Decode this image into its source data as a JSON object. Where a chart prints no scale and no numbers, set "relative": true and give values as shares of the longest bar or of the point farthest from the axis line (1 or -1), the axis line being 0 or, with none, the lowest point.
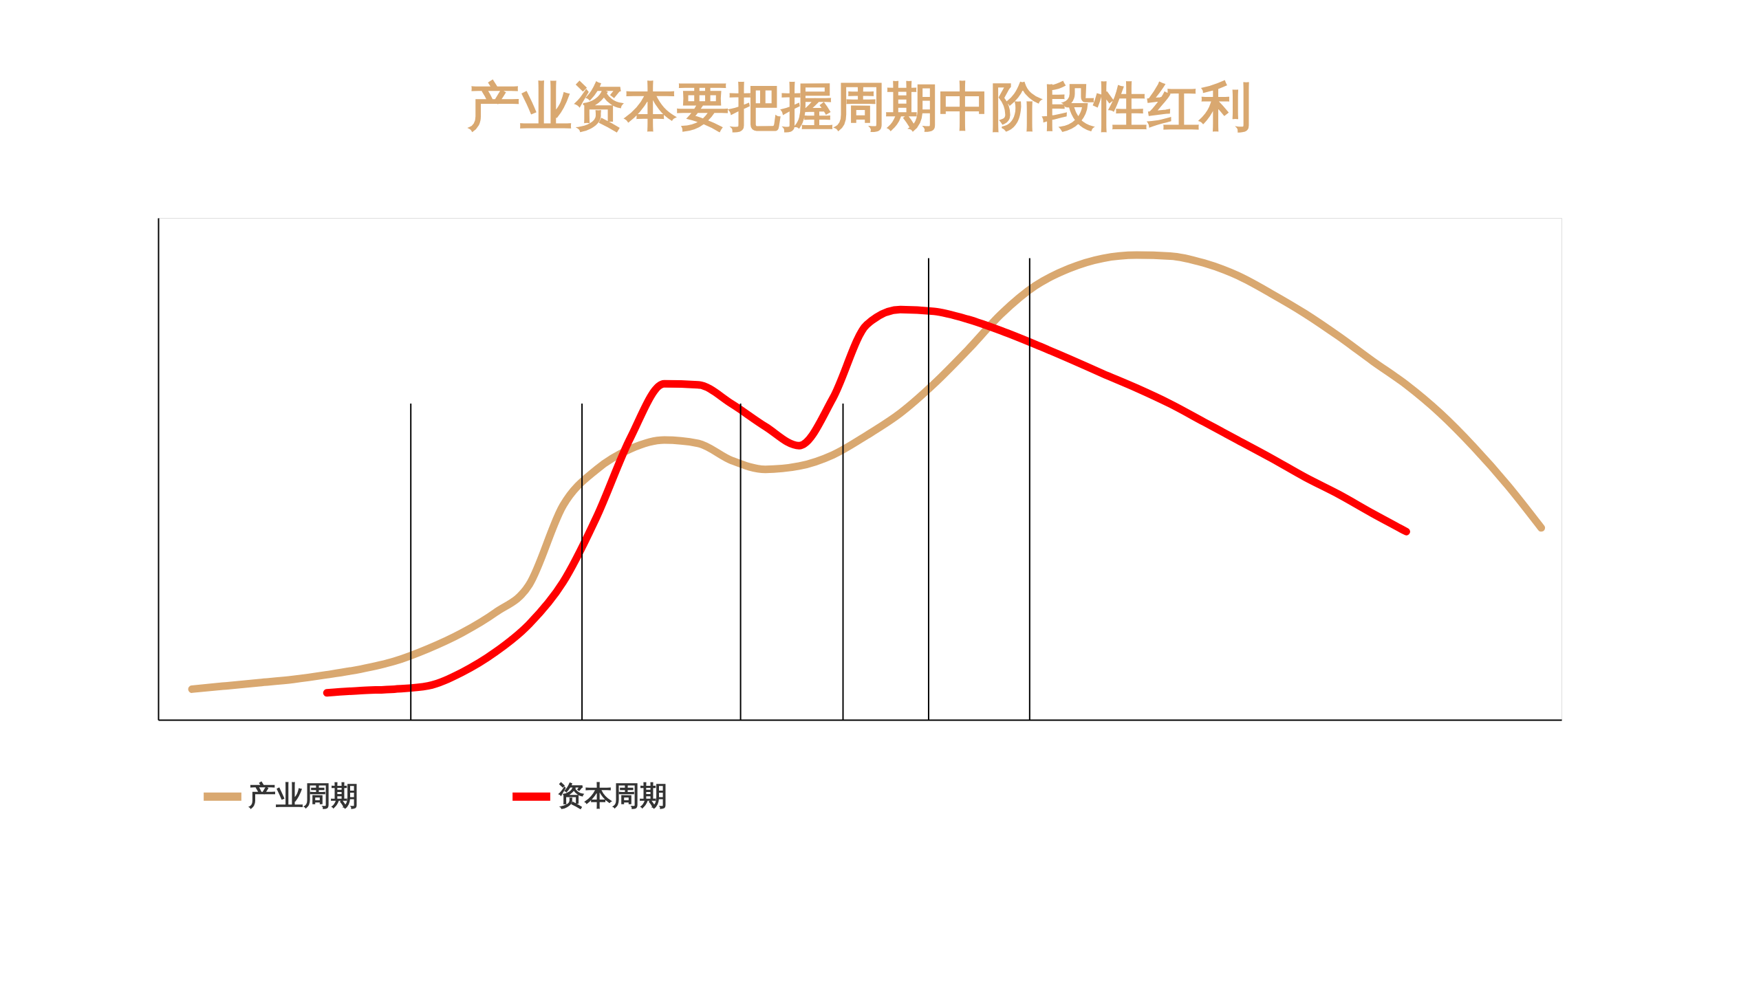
{
  "chart_data": {
    "type": "line",
    "title": "产业资本要把握周期中阶段性红利",
    "relative": true,
    "tick_labels": false,
    "grid": false,
    "legend": "bottom",
    "line_style": "solid",
    "marker": "none",
    "categories": [
      null,
      null,
      null,
      null,
      null,
      null,
      null,
      null,
      null,
      null,
      null,
      null,
      null,
      null,
      null,
      null,
      null,
      null,
      null,
      null,
      null,
      null,
      null,
      null,
      null,
      null,
      null,
      null,
      null,
      null,
      null,
      null,
      null,
      null,
      null,
      null,
      null,
      null,
      null,
      null,
      null,
      null
    ],
    "series": [
      {
        "name": "产业周期",
        "color": "#d9a870",
        "values": [
          null,
          0.066,
          0.073,
          0.08,
          0.087,
          0.097,
          0.109,
          0.126,
          0.153,
          0.187,
          0.231,
          0.291,
          0.461,
          0.539,
          0.583,
          0.602,
          0.595,
          0.558,
          0.539,
          0.546,
          0.57,
          0.612,
          0.66,
          0.723,
          0.796,
          0.874,
          0.934,
          0.971,
          0.993,
          1.0,
          0.998,
          0.983,
          0.956,
          0.917,
          0.874,
          0.825,
          0.772,
          0.721,
          0.66,
          0.587,
          0.505,
          0.413
        ]
      },
      {
        "name": "资本周期",
        "color": "#ff0000",
        "values": [
          null,
          null,
          null,
          null,
          null,
          0.058,
          0.063,
          0.066,
          0.073,
          0.102,
          0.146,
          0.206,
          0.296,
          0.437,
          0.607,
          0.723,
          0.721,
          0.68,
          0.631,
          0.59,
          0.692,
          0.85,
          0.883,
          0.879,
          0.862,
          0.837,
          0.808,
          0.777,
          0.745,
          0.714,
          0.68,
          0.641,
          0.602,
          0.563,
          0.522,
          0.485,
          0.444,
          0.405,
          null,
          null,
          null,
          null
        ]
      }
    ]
  }
}
